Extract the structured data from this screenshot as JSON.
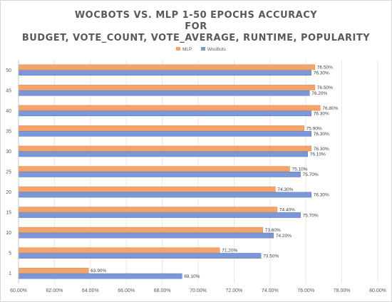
{
  "chart_data": {
    "type": "bar",
    "orientation": "horizontal",
    "title_lines": [
      "WOCBOTS VS. MLP 1-50 EPOCHS ACCURACY",
      "FOR",
      "BUDGET, VOTE_COUNT, VOTE_AVERAGE, RUNTIME, POPULARITY"
    ],
    "xlabel": "",
    "ylabel": "",
    "xlim": [
      60,
      80
    ],
    "x_ticks": [
      "60.00%",
      "62.00%",
      "64.00%",
      "66.00%",
      "68.00%",
      "70.00%",
      "72.00%",
      "74.00%",
      "76.00%",
      "78.00%",
      "80.00%"
    ],
    "categories": [
      "1",
      "5",
      "10",
      "15",
      "20",
      "25",
      "30",
      "35",
      "40",
      "45",
      "50"
    ],
    "legend_position": "top",
    "grid": true,
    "series": [
      {
        "name": "MLP",
        "color": "#f4a46a",
        "values": [
          63.9,
          71.2,
          73.6,
          74.4,
          74.3,
          75.1,
          76.3,
          75.9,
          76.8,
          76.5,
          76.5
        ],
        "labels": [
          "63.90%",
          "71.20%",
          "73.60%",
          "74.40%",
          "74.30%",
          "75.10%",
          "76.30%",
          "75.90%",
          "76.80%",
          "76.50%",
          "76.50%"
        ]
      },
      {
        "name": "WocBots",
        "color": "#7b97d6",
        "values": [
          69.1,
          73.5,
          74.2,
          75.7,
          76.3,
          75.7,
          76.1,
          76.3,
          76.3,
          76.2,
          76.3
        ],
        "labels": [
          "69.10%",
          "73.50%",
          "74.20%",
          "75.70%",
          "76.30%",
          "75.70%",
          "76.10%",
          "76.30%",
          "76.30%",
          "76.20%",
          "76.30%"
        ]
      }
    ]
  }
}
